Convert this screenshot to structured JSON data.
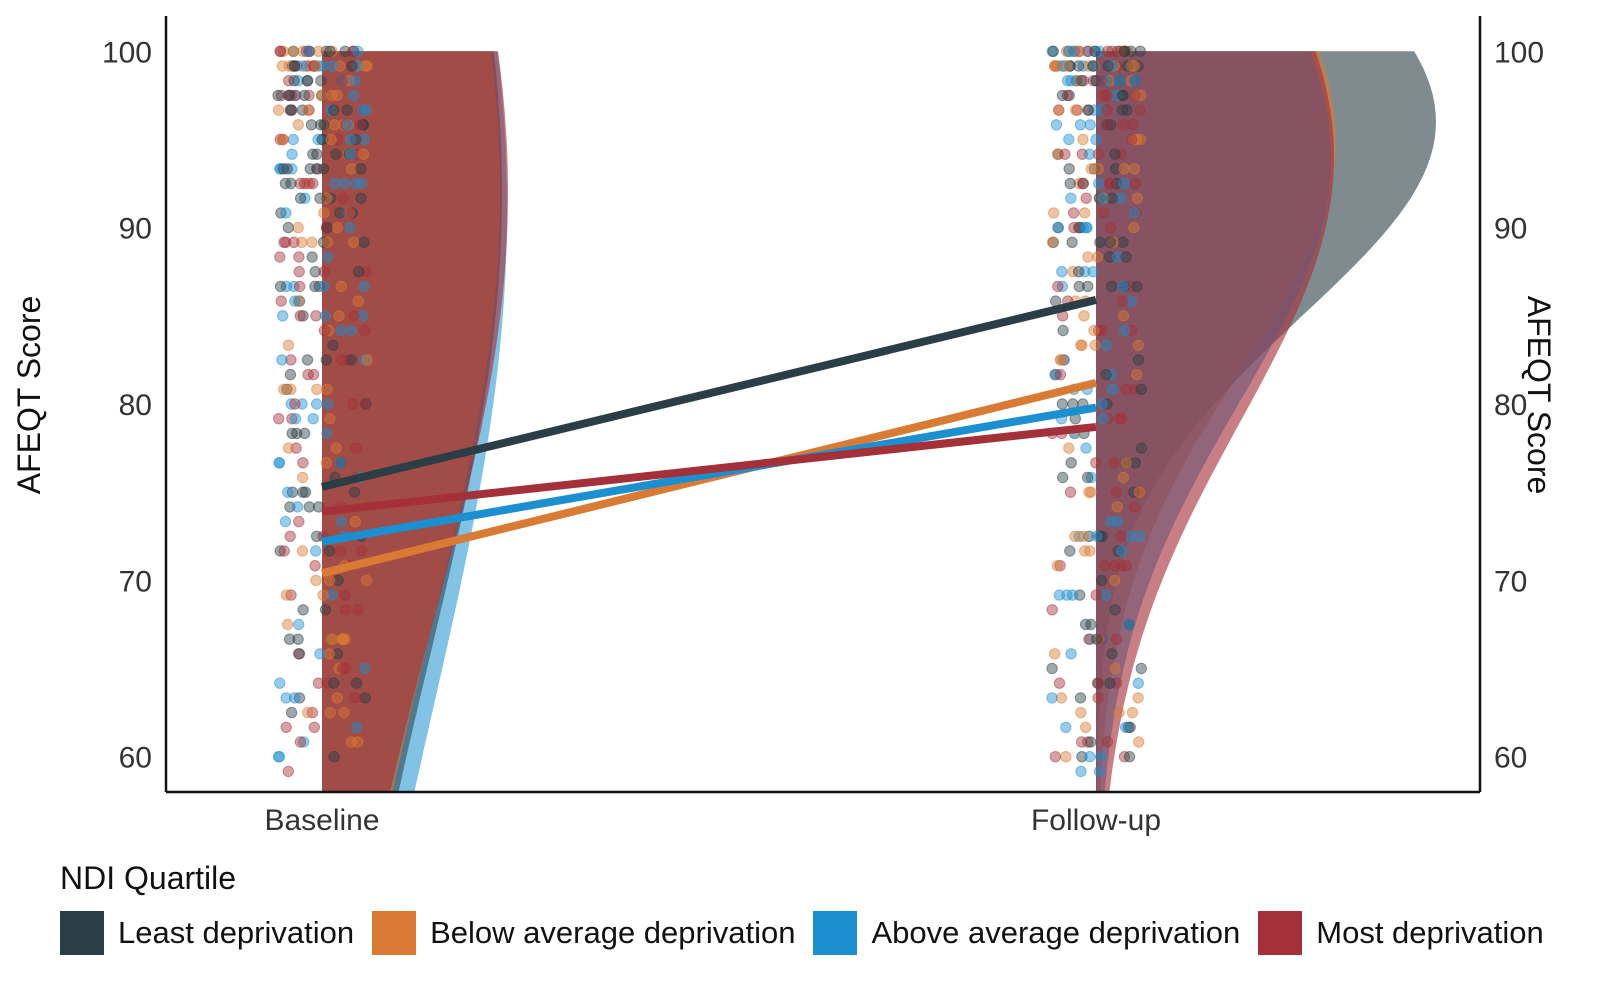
{
  "chart_data": {
    "type": "raincloud",
    "xlabel": "",
    "ylabel": "AFEQT Score",
    "ylabel_right": "AFEQT Score",
    "categories": [
      "Baseline",
      "Follow-up"
    ],
    "ylim": [
      58,
      102
    ],
    "yticks": [
      "60",
      "70",
      "80",
      "90",
      "100"
    ],
    "legend": {
      "title": "NDI Quartile",
      "placement": "bottom"
    },
    "series": [
      {
        "name": "Least deprivation",
        "color": "#2b3d45",
        "values": [
          75.3,
          85.9
        ]
      },
      {
        "name": "Below average deprivation",
        "color": "#d97b34",
        "values": [
          70.4,
          81.2
        ]
      },
      {
        "name": "Above average deprivation",
        "color": "#1b8fd0",
        "values": [
          72.2,
          79.8
        ]
      },
      {
        "name": "Most deprivation",
        "color": "#a4313a",
        "values": [
          73.9,
          78.7
        ]
      }
    ]
  }
}
